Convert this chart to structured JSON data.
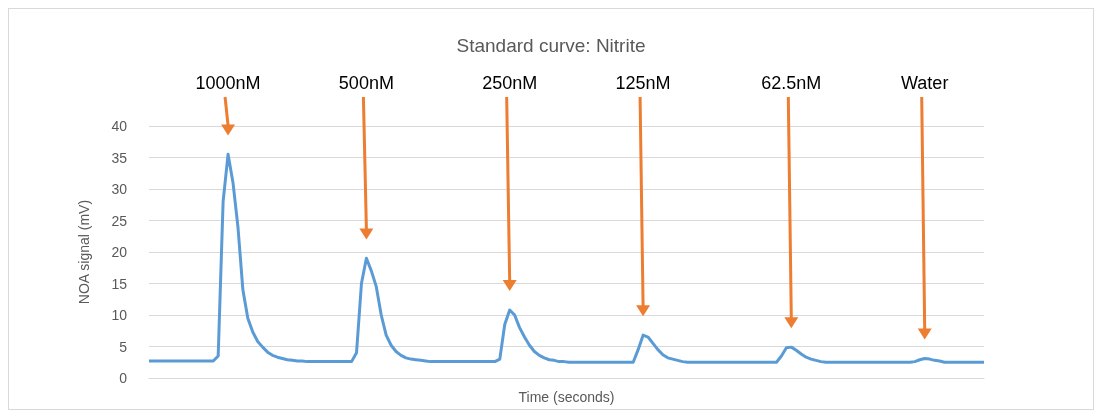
{
  "chart_data": {
    "type": "line",
    "title": "Standard curve: Nitrite",
    "xlabel": "Time (seconds)",
    "ylabel": "NOA signal (mV)",
    "categories": [
      null,
      null,
      null,
      null,
      null,
      null,
      null,
      null,
      null,
      null,
      null,
      null,
      null,
      null,
      null,
      null,
      null,
      null,
      null,
      null,
      null,
      null,
      null,
      null,
      null,
      null,
      null,
      null,
      null,
      null,
      null,
      null,
      null,
      null,
      null,
      null,
      null,
      null,
      null,
      null,
      null,
      null,
      null,
      null,
      null,
      null,
      null,
      null,
      null,
      null,
      null,
      null,
      null,
      null,
      null,
      null,
      null,
      null,
      null,
      null,
      null,
      null,
      null,
      null,
      null,
      null,
      null,
      null,
      null,
      null,
      null,
      null,
      null,
      null,
      null,
      null,
      null,
      null,
      null,
      null,
      null,
      null,
      null,
      null,
      null,
      null,
      null,
      null,
      null,
      null,
      null,
      null,
      null,
      null,
      null,
      null,
      null,
      null,
      null,
      null,
      null,
      null,
      null,
      null,
      null,
      null,
      null,
      null,
      null,
      null,
      null,
      null,
      null,
      null,
      null,
      null,
      null,
      null,
      null,
      null,
      null,
      null,
      null,
      null,
      null,
      null,
      null,
      null,
      null,
      null,
      null,
      null,
      null,
      null,
      null,
      null,
      null,
      null,
      null,
      null,
      null,
      null,
      null,
      null,
      null,
      null,
      null,
      null,
      null,
      null,
      null,
      null,
      null,
      null,
      null,
      null,
      null,
      null,
      null,
      null,
      null,
      null,
      null,
      null,
      null,
      null,
      null,
      null,
      null,
      null
    ],
    "series": [
      {
        "color": "#5b9bd5",
        "values": [
          2.7,
          2.7,
          2.7,
          2.7,
          2.7,
          2.7,
          2.7,
          2.7,
          2.7,
          2.7,
          2.7,
          2.7,
          2.7,
          2.7,
          3.5,
          28,
          35.5,
          31,
          24,
          14,
          9.5,
          7.3,
          5.8,
          4.9,
          4.1,
          3.6,
          3.3,
          3.1,
          2.9,
          2.8,
          2.7,
          2.7,
          2.6,
          2.6,
          2.6,
          2.6,
          2.6,
          2.6,
          2.6,
          2.6,
          2.6,
          2.6,
          4,
          15,
          19,
          17,
          14.5,
          10,
          6.8,
          5.2,
          4.2,
          3.6,
          3.2,
          3.0,
          2.9,
          2.8,
          2.7,
          2.6,
          2.6,
          2.6,
          2.6,
          2.6,
          2.6,
          2.6,
          2.6,
          2.6,
          2.6,
          2.6,
          2.6,
          2.6,
          2.6,
          3,
          8.5,
          10.8,
          10,
          8,
          6.5,
          5.2,
          4.2,
          3.6,
          3.2,
          2.9,
          2.8,
          2.6,
          2.6,
          2.5,
          2.5,
          2.5,
          2.5,
          2.5,
          2.5,
          2.5,
          2.5,
          2.5,
          2.5,
          2.5,
          2.5,
          2.5,
          2.5,
          4.5,
          6.8,
          6.5,
          5.5,
          4.5,
          3.7,
          3.2,
          3.0,
          2.8,
          2.6,
          2.5,
          2.5,
          2.5,
          2.5,
          2.5,
          2.5,
          2.5,
          2.5,
          2.5,
          2.5,
          2.5,
          2.5,
          2.5,
          2.5,
          2.5,
          2.5,
          2.5,
          2.5,
          2.5,
          3.5,
          4.8,
          4.9,
          4.4,
          3.8,
          3.3,
          3.0,
          2.8,
          2.6,
          2.5,
          2.5,
          2.5,
          2.5,
          2.5,
          2.5,
          2.5,
          2.5,
          2.5,
          2.5,
          2.5,
          2.5,
          2.5,
          2.5,
          2.5,
          2.5,
          2.5,
          2.5,
          2.6,
          2.9,
          3.1,
          3.0,
          2.8,
          2.7,
          2.5,
          2.5,
          2.5,
          2.5,
          2.5,
          2.5,
          2.5,
          2.5,
          2.5
        ]
      }
    ],
    "ylim": [
      0,
      40
    ],
    "yticks": [
      0,
      5,
      10,
      15,
      20,
      25,
      30,
      35,
      40
    ],
    "grid": "y",
    "line_style": "solid",
    "annotations": [
      "1000nM",
      "500nM",
      "250nM",
      "125nM",
      "62.5nM",
      "Water"
    ]
  }
}
